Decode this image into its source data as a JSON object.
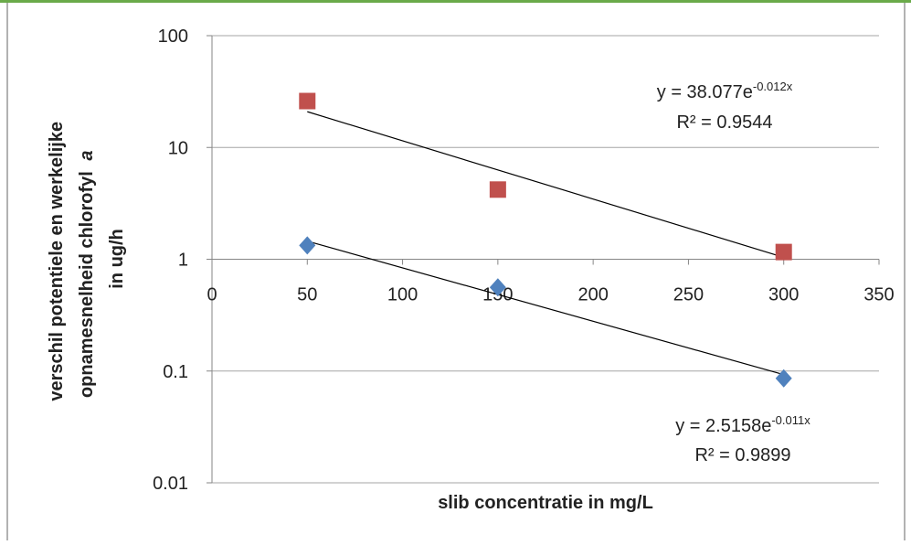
{
  "chart_data": {
    "type": "scatter",
    "x_label": "slib concentratie in mg/L",
    "y_label": {
      "line1": "verschil potentiele en werkelijke",
      "line2": "opnamesnelheid chlorofyl",
      "line2_italic": "a",
      "line3": "in ug/h"
    },
    "xlim": [
      0,
      350
    ],
    "xticks": [
      0,
      50,
      100,
      150,
      200,
      250,
      300,
      350
    ],
    "ylim": [
      0.01,
      100
    ],
    "yticks": [
      0.01,
      0.1,
      1,
      10,
      100
    ],
    "yscale": "log",
    "grid": true,
    "series": [
      {
        "color": "#c0504d",
        "marker": "square",
        "x": [
          50,
          150,
          300
        ],
        "values": [
          26,
          4.2,
          1.16
        ],
        "trendline": {
          "a": 38.077,
          "b": -0.012,
          "equation": "y = 38.077e",
          "exponent": "-0.012x",
          "r_squared": "R² = 0.9544"
        }
      },
      {
        "color": "#4f81bd",
        "marker": "diamond",
        "x": [
          50,
          150,
          300
        ],
        "values": [
          1.33,
          0.56,
          0.086
        ],
        "trendline": {
          "a": 2.5158,
          "b": -0.011,
          "equation": "y = 2.5158e",
          "exponent": "-0.011x",
          "r_squared": "R² = 0.9899"
        }
      }
    ]
  }
}
